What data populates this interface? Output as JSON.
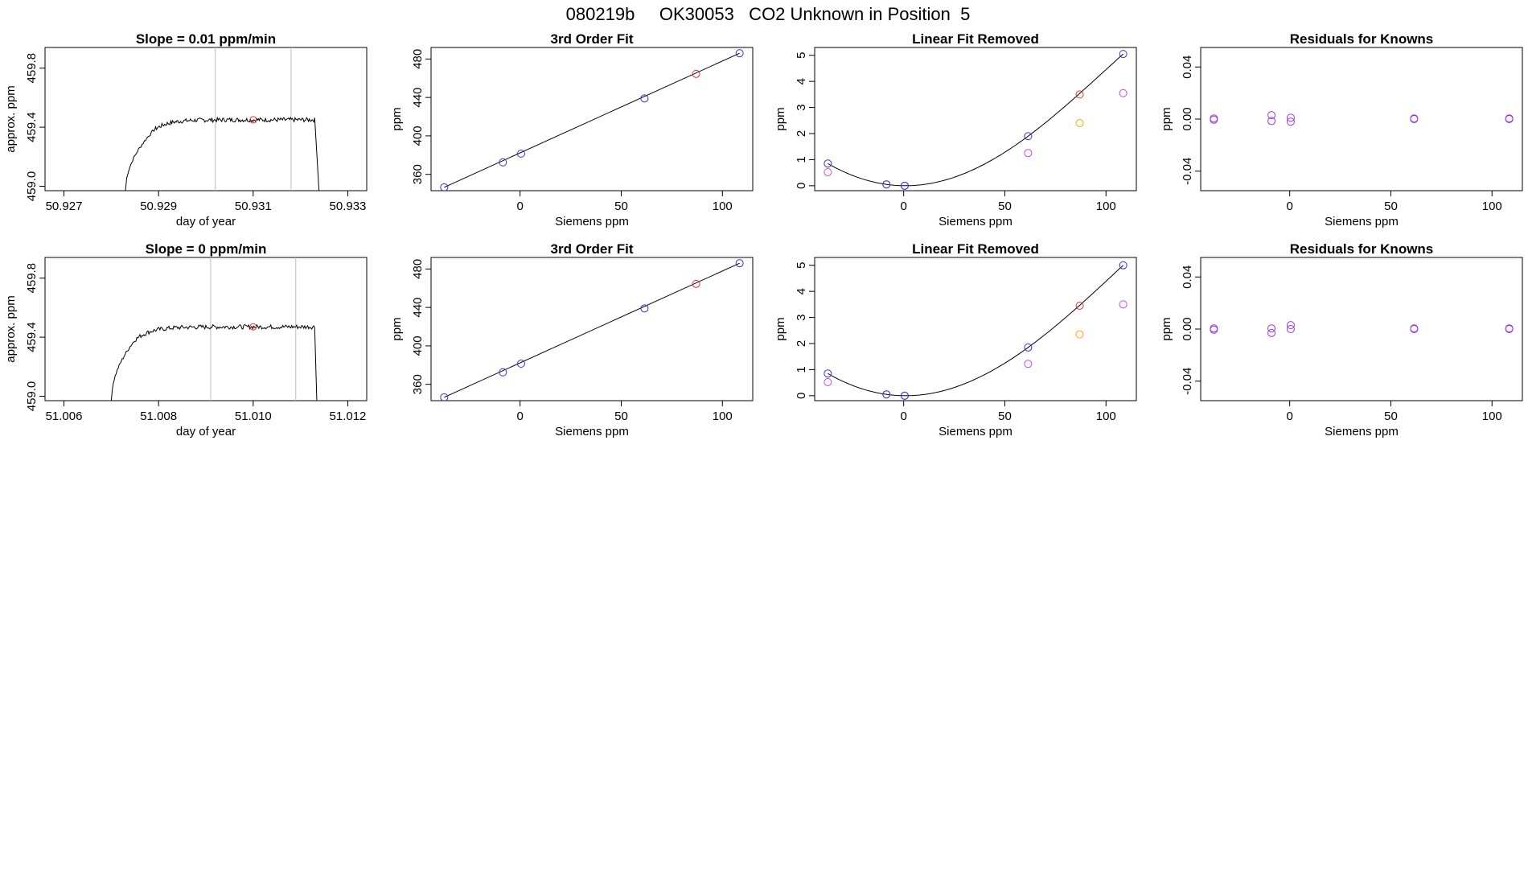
{
  "figure": {
    "title": "080219b     OK30053   CO2 Unknown in Position  5"
  },
  "colors": {
    "knowns": "#3333dd",
    "unknown": "#e83030",
    "linear_residual": "#cc44ee",
    "alt_unknown": "#ffa500",
    "residual": "#9933ee",
    "line": "#000000",
    "cursor": "#bbbbbb"
  },
  "chart_data": [
    {
      "type": "line",
      "row": 1,
      "col": 1,
      "title": "Slope =  0.01  ppm/min",
      "xlabel": "day of year",
      "ylabel": "approx. ppm",
      "xlim": [
        50.9266,
        50.9334
      ],
      "ylim": [
        458.97,
        459.94
      ],
      "xticks": [
        50.927,
        50.929,
        50.931,
        50.933
      ],
      "xtick_labels": [
        "50.927",
        "50.929",
        "50.931",
        "50.933"
      ],
      "yticks": [
        459.0,
        459.4,
        459.8
      ],
      "ytick_labels": [
        "459.0",
        "459.4",
        "459.8"
      ],
      "vlines": [
        50.9302,
        50.9318
      ],
      "series": [
        {
          "rise_x": [
            50.9283,
            50.9289
          ],
          "rise_y": [
            458.97,
            459.38
          ],
          "plateau_x": [
            50.9289,
            50.9323
          ],
          "plateau_y": 459.45,
          "fall_x": [
            50.9323,
            50.9324
          ]
        }
      ],
      "marker": {
        "x": 50.931,
        "y": 459.45
      }
    },
    {
      "type": "scatter",
      "row": 1,
      "col": 2,
      "title": "3rd Order Fit",
      "xlabel": "Siemens ppm",
      "ylabel": "ppm",
      "xlim": [
        -44,
        115
      ],
      "ylim": [
        343,
        492
      ],
      "xticks": [
        0,
        50,
        100
      ],
      "xtick_labels": [
        "0",
        "50",
        "100"
      ],
      "yticks": [
        360,
        400,
        440,
        480
      ],
      "ytick_labels": [
        "360",
        "400",
        "440",
        "480"
      ],
      "fit": {
        "type": "linear",
        "x": [
          -37.5,
          108.5
        ]
      },
      "points": {
        "x": [
          -37.5,
          -8.5,
          0.5,
          61.5,
          108.5
        ],
        "y": [
          346.5,
          372.5,
          381.5,
          439,
          486
        ]
      },
      "unknown": {
        "x": 87,
        "y": 464.5
      }
    },
    {
      "type": "scatter",
      "row": 1,
      "col": 3,
      "title": "Linear Fit Removed",
      "xlabel": "Siemens ppm",
      "ylabel": "ppm",
      "xlim": [
        -44,
        115
      ],
      "ylim": [
        -0.19,
        5.3
      ],
      "xticks": [
        0,
        50,
        100
      ],
      "xtick_labels": [
        "0",
        "50",
        "100"
      ],
      "yticks": [
        0,
        1,
        2,
        3,
        4,
        5
      ],
      "ytick_labels": [
        "0",
        "1",
        "2",
        "3",
        "4",
        "5"
      ],
      "fit": {
        "type": "cubic",
        "x": [
          -37.5,
          -8.5,
          0.5,
          61.5,
          108.5
        ],
        "y": [
          0.85,
          0.05,
          0.0,
          1.9,
          5.05
        ]
      },
      "points": {
        "x": [
          -37.5,
          -8.5,
          0.5,
          61.5,
          108.5
        ],
        "y": [
          0.85,
          0.05,
          0.0,
          1.9,
          5.05
        ]
      },
      "linear_residuals": {
        "x": [
          -37.5,
          -8.5,
          0.5,
          61.5,
          108.5
        ],
        "y": [
          0.52,
          0.05,
          0.0,
          1.25,
          3.55
        ]
      },
      "unknown": {
        "x": 87,
        "y": 3.5
      },
      "alt_unknown": {
        "x": 87,
        "y": 2.4
      }
    },
    {
      "type": "scatter",
      "row": 1,
      "col": 4,
      "title": "Residuals for Knowns",
      "xlabel": "Siemens ppm",
      "ylabel": "ppm",
      "xlim": [
        -44,
        115
      ],
      "ylim": [
        -0.055,
        0.055
      ],
      "xticks": [
        0,
        50,
        100
      ],
      "xtick_labels": [
        "0",
        "50",
        "100"
      ],
      "yticks": [
        -0.04,
        0.0,
        0.04
      ],
      "ytick_labels": [
        "-0.04",
        "0.00",
        "0.04"
      ],
      "points": {
        "x": [
          -37.5,
          -37.5,
          -9,
          -9,
          0.5,
          0.5,
          61.5,
          61.5,
          108.5,
          108.5
        ],
        "y": [
          0.0005,
          -0.0005,
          0.003,
          -0.0015,
          0.001,
          -0.002,
          0.0,
          0.0005,
          0.0,
          0.0005
        ]
      }
    },
    {
      "type": "line",
      "row": 2,
      "col": 1,
      "title": "Slope =  0  ppm/min",
      "xlabel": "day of year",
      "ylabel": "approx. ppm",
      "xlim": [
        51.0056,
        51.0124
      ],
      "ylim": [
        458.97,
        459.94
      ],
      "xticks": [
        51.006,
        51.008,
        51.01,
        51.012
      ],
      "xtick_labels": [
        "51.006",
        "51.008",
        "51.010",
        "51.012"
      ],
      "yticks": [
        459.0,
        459.4,
        459.8
      ],
      "ytick_labels": [
        "459.0",
        "459.4",
        "459.8"
      ],
      "vlines": [
        51.0091,
        51.0109
      ],
      "series": [
        {
          "rise_x": [
            51.007,
            51.0075
          ],
          "rise_y": [
            458.97,
            459.38
          ],
          "plateau_x": [
            51.0075,
            51.0113
          ],
          "plateau_y": 459.47,
          "fall_x": [
            51.0113,
            51.01135
          ]
        }
      ],
      "marker": {
        "x": 51.01,
        "y": 459.47
      }
    },
    {
      "type": "scatter",
      "row": 2,
      "col": 2,
      "title": "3rd Order Fit",
      "xlabel": "Siemens ppm",
      "ylabel": "ppm",
      "xlim": [
        -44,
        115
      ],
      "ylim": [
        343,
        492
      ],
      "xticks": [
        0,
        50,
        100
      ],
      "xtick_labels": [
        "0",
        "50",
        "100"
      ],
      "yticks": [
        360,
        400,
        440,
        480
      ],
      "ytick_labels": [
        "360",
        "400",
        "440",
        "480"
      ],
      "fit": {
        "type": "linear",
        "x": [
          -37.5,
          108.5
        ]
      },
      "points": {
        "x": [
          -37.5,
          -8.5,
          0.5,
          61.5,
          108.5
        ],
        "y": [
          346.5,
          372.5,
          381.5,
          439,
          486
        ]
      },
      "unknown": {
        "x": 87,
        "y": 464.5
      }
    },
    {
      "type": "scatter",
      "row": 2,
      "col": 3,
      "title": "Linear Fit Removed",
      "xlabel": "Siemens ppm",
      "ylabel": "ppm",
      "xlim": [
        -44,
        115
      ],
      "ylim": [
        -0.19,
        5.3
      ],
      "xticks": [
        0,
        50,
        100
      ],
      "xtick_labels": [
        "0",
        "50",
        "100"
      ],
      "yticks": [
        0,
        1,
        2,
        3,
        4,
        5
      ],
      "ytick_labels": [
        "0",
        "1",
        "2",
        "3",
        "4",
        "5"
      ],
      "fit": {
        "type": "cubic",
        "x": [
          -37.5,
          -8.5,
          0.5,
          61.5,
          108.5
        ],
        "y": [
          0.85,
          0.05,
          0.0,
          1.85,
          5.0
        ]
      },
      "points": {
        "x": [
          -37.5,
          -8.5,
          0.5,
          61.5,
          108.5
        ],
        "y": [
          0.85,
          0.05,
          0.0,
          1.85,
          5.0
        ]
      },
      "linear_residuals": {
        "x": [
          -37.5,
          -8.5,
          0.5,
          61.5,
          108.5
        ],
        "y": [
          0.52,
          0.05,
          0.0,
          1.22,
          3.5
        ]
      },
      "unknown": {
        "x": 87,
        "y": 3.45
      },
      "alt_unknown": {
        "x": 87,
        "y": 2.35
      }
    },
    {
      "type": "scatter",
      "row": 2,
      "col": 4,
      "title": "Residuals for Knowns",
      "xlabel": "Siemens ppm",
      "ylabel": "ppm",
      "xlim": [
        -44,
        115
      ],
      "ylim": [
        -0.055,
        0.055
      ],
      "xticks": [
        0,
        50,
        100
      ],
      "xtick_labels": [
        "0",
        "50",
        "100"
      ],
      "yticks": [
        -0.04,
        0.0,
        0.04
      ],
      "ytick_labels": [
        "-0.04",
        "0.00",
        "0.04"
      ],
      "points": {
        "x": [
          -37.5,
          -37.5,
          -9,
          -9,
          0.5,
          0.5,
          61.5,
          61.5,
          108.5,
          108.5
        ],
        "y": [
          0.0005,
          -0.0005,
          0.0005,
          -0.003,
          0.003,
          0.0,
          0.0,
          0.0005,
          0.0,
          0.0005
        ]
      }
    }
  ]
}
